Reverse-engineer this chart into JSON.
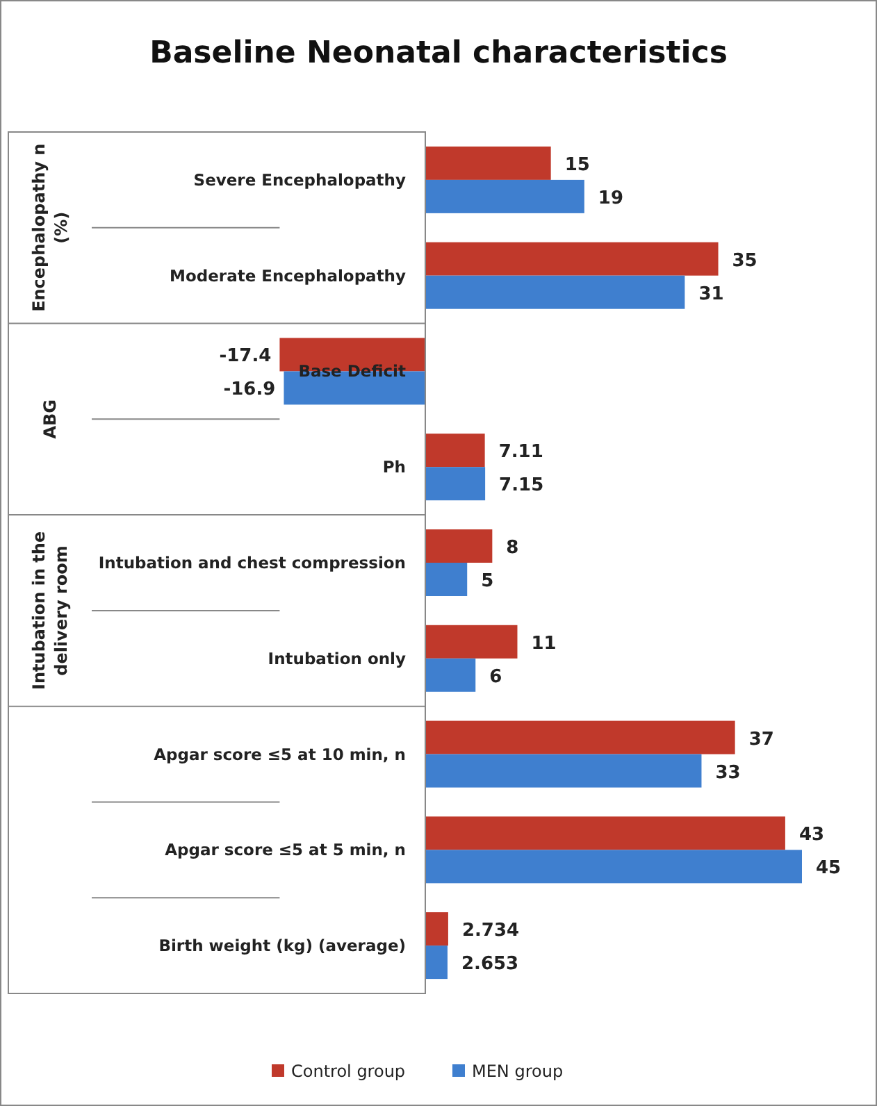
{
  "chart_data": {
    "type": "bar",
    "orientation": "horizontal",
    "title": "Baseline Neonatal characteristics",
    "categories": [
      "Severe Encephalopathy",
      "Moderate Encephalopathy",
      "Base Deficit",
      "Ph",
      "Intubation and chest compression",
      "Intubation only",
      "Apgar score ≤5 at 10 min, n",
      "Apgar score ≤5 at 5 min, n",
      "Birth weight (kg) (average)"
    ],
    "series": [
      {
        "name": "Control group",
        "color": "#c0392b",
        "values": [
          15,
          35,
          -17.4,
          7.11,
          8,
          11,
          37,
          43,
          2.734
        ]
      },
      {
        "name": "MEN group",
        "color": "#3f7fcf",
        "values": [
          19,
          31,
          -16.9,
          7.15,
          5,
          6,
          33,
          45,
          2.653
        ]
      }
    ],
    "annotations": [
      "Encephalopathy n (%)",
      "ABG",
      "Intubation in the delivery room"
    ],
    "data_labels": true,
    "legend": "bottom"
  }
}
